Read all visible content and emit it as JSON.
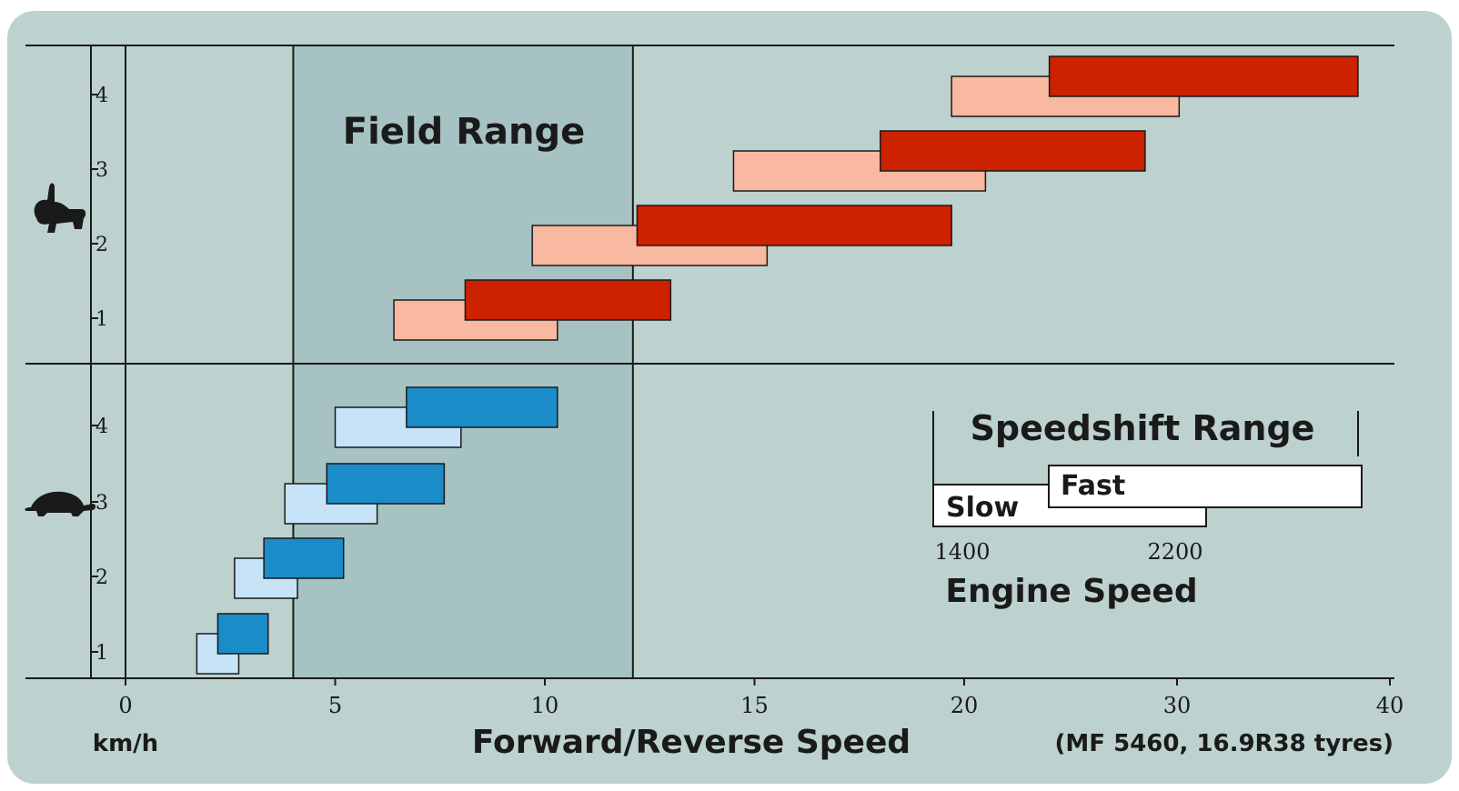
{
  "chart_data": {
    "type": "range-bar",
    "xlabel": "Forward/Reverse Speed",
    "x_unit": "km/h",
    "note": "(MF 5460, 16.9R38 tyres)",
    "x_ticks": [
      0,
      5,
      10,
      15,
      20,
      30,
      40
    ],
    "field_range": {
      "label": "Field Range",
      "from": 4,
      "to": 12.1
    },
    "groups": [
      {
        "name": "hare",
        "icon": "hare-icon",
        "colors": {
          "slow": "#f9b8a0",
          "fast": "#cc2200"
        },
        "gears": [
          {
            "gear": "1",
            "slow": [
              6.4,
              10.3
            ],
            "fast": [
              8.1,
              13
            ]
          },
          {
            "gear": "2",
            "slow": [
              9.7,
              15.3
            ],
            "fast": [
              12.2,
              19.7
            ]
          },
          {
            "gear": "3",
            "slow": [
              14.5,
              21
            ],
            "fast": [
              18,
              28.5
            ]
          },
          {
            "gear": "4",
            "slow": [
              19.7,
              30.1
            ],
            "fast": [
              24,
              38.5
            ]
          }
        ]
      },
      {
        "name": "tortoise",
        "icon": "tortoise-icon",
        "colors": {
          "slow": "#c6e3f7",
          "fast": "#1a8cc8"
        },
        "gears": [
          {
            "gear": "1",
            "slow": [
              1.7,
              2.7
            ],
            "fast": [
              2.2,
              3.4
            ]
          },
          {
            "gear": "2",
            "slow": [
              2.6,
              4.1
            ],
            "fast": [
              3.3,
              5.2
            ]
          },
          {
            "gear": "3",
            "slow": [
              3.8,
              6
            ],
            "fast": [
              4.8,
              7.6
            ]
          },
          {
            "gear": "4",
            "slow": [
              5,
              8
            ],
            "fast": [
              6.7,
              10.3
            ]
          }
        ]
      }
    ]
  },
  "legend": {
    "title": "Speedshift Range",
    "slow": "Slow",
    "fast": "Fast",
    "rpm_low": "1400",
    "rpm_high": "2200",
    "caption": "Engine Speed"
  }
}
